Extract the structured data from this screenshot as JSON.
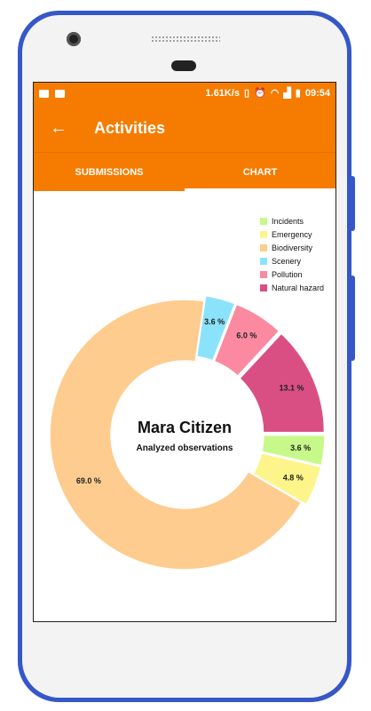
{
  "status_bar": {
    "speed": "1.61K/s",
    "time": "09:54"
  },
  "app_bar": {
    "title": "Activities",
    "back_icon": "arrow-left-icon"
  },
  "tabs": [
    {
      "label": "SUBMISSIONS",
      "active": false
    },
    {
      "label": "CHART",
      "active": true
    }
  ],
  "chart_data": {
    "type": "pie",
    "center_title": "Mara Citizen",
    "center_subtitle": "Analyzed observations",
    "legend_placement": "top-right",
    "slices": [
      {
        "name": "Incidents",
        "value": 3.6,
        "label": "3.6 %",
        "color": "#c6f98a"
      },
      {
        "name": "Emergency",
        "value": 4.8,
        "label": "4.8 %",
        "color": "#fdf58a"
      },
      {
        "name": "Biodiversity",
        "value": 69.0,
        "label": "69.0 %",
        "color": "#fdcc8e"
      },
      {
        "name": "Scenery",
        "value": 3.6,
        "label": "3.6 %",
        "color": "#8be3fb"
      },
      {
        "name": "Pollution",
        "value": 6.0,
        "label": "6.0 %",
        "color": "#fb8aa0"
      },
      {
        "name": "Natural hazard",
        "value": 13.1,
        "label": "13.1 %",
        "color": "#d94f84"
      }
    ]
  }
}
